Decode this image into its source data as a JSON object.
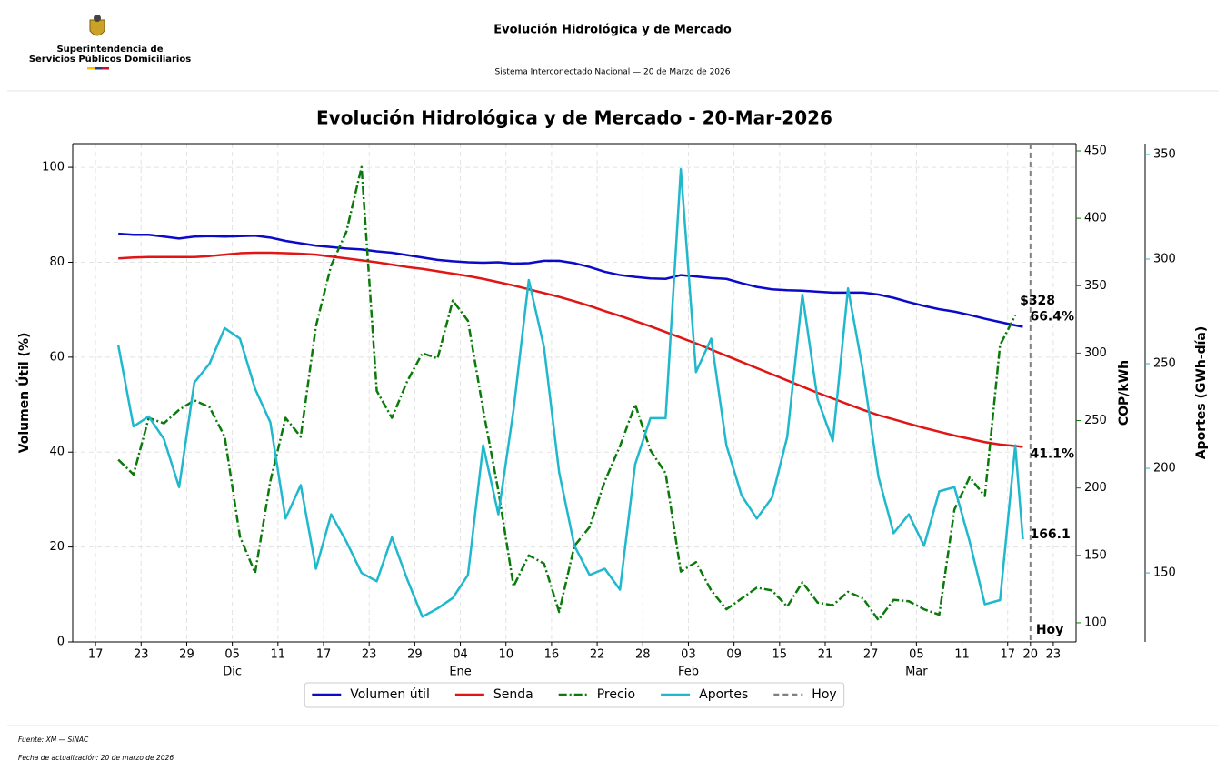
{
  "header": {
    "org_line1": "Superintendencia de",
    "org_line2": "Servicios Públicos Domiciliarios",
    "title": "Evolución Hidrológica y de Mercado",
    "subtitle": "Sistema Interconectado Nacional  —  20 de Marzo de 2026"
  },
  "footer": {
    "source": "Fuente: XM — SiNAC",
    "updated": "Fecha de actualización: 20 de marzo de 2026"
  },
  "chart_data": {
    "type": "line",
    "title": "Evolución Hidrológica y de Mercado - 20-Mar-2026",
    "ylabel": "Volumen Útil (%)",
    "y2label": "COP/kWh",
    "y3label": "Aportes (GWh-día)",
    "grid": true,
    "legend": "bottom",
    "x": [
      "2025-11-20",
      "2025-11-22",
      "2025-11-24",
      "2025-11-26",
      "2025-11-28",
      "2025-11-30",
      "2025-12-02",
      "2025-12-04",
      "2025-12-06",
      "2025-12-08",
      "2025-12-10",
      "2025-12-12",
      "2025-12-14",
      "2025-12-16",
      "2025-12-18",
      "2025-12-20",
      "2025-12-22",
      "2025-12-24",
      "2025-12-26",
      "2025-12-28",
      "2025-12-30",
      "2026-01-01",
      "2026-01-03",
      "2026-01-05",
      "2026-01-07",
      "2026-01-09",
      "2026-01-11",
      "2026-01-13",
      "2026-01-15",
      "2026-01-17",
      "2026-01-19",
      "2026-01-21",
      "2026-01-23",
      "2026-01-25",
      "2026-01-27",
      "2026-01-29",
      "2026-01-31",
      "2026-02-02",
      "2026-02-04",
      "2026-02-06",
      "2026-02-08",
      "2026-02-10",
      "2026-02-12",
      "2026-02-14",
      "2026-02-16",
      "2026-02-18",
      "2026-02-20",
      "2026-02-22",
      "2026-02-24",
      "2026-02-26",
      "2026-02-28",
      "2026-03-02",
      "2026-03-04",
      "2026-03-06",
      "2026-03-08",
      "2026-03-10",
      "2026-03-12",
      "2026-03-14",
      "2026-03-16",
      "2026-03-18",
      "2026-03-19"
    ],
    "xlim": [
      "2025-11-14",
      "2026-03-26"
    ],
    "xticks": [
      {
        "value": "2025-11-17",
        "label": "17"
      },
      {
        "value": "2025-11-23",
        "label": "23"
      },
      {
        "value": "2025-11-29",
        "label": "29"
      },
      {
        "value": "2025-12-05",
        "label": "05"
      },
      {
        "value": "2025-12-11",
        "label": "11"
      },
      {
        "value": "2025-12-17",
        "label": "17"
      },
      {
        "value": "2025-12-23",
        "label": "23"
      },
      {
        "value": "2025-12-29",
        "label": "29"
      },
      {
        "value": "2026-01-04",
        "label": "04"
      },
      {
        "value": "2026-01-10",
        "label": "10"
      },
      {
        "value": "2026-01-16",
        "label": "16"
      },
      {
        "value": "2026-01-22",
        "label": "22"
      },
      {
        "value": "2026-01-28",
        "label": "28"
      },
      {
        "value": "2026-02-03",
        "label": "03"
      },
      {
        "value": "2026-02-09",
        "label": "09"
      },
      {
        "value": "2026-02-15",
        "label": "15"
      },
      {
        "value": "2026-02-21",
        "label": "21"
      },
      {
        "value": "2026-02-27",
        "label": "27"
      },
      {
        "value": "2026-03-05",
        "label": "05"
      },
      {
        "value": "2026-03-11",
        "label": "11"
      },
      {
        "value": "2026-03-17",
        "label": "17"
      },
      {
        "value": "2026-03-20",
        "label": "20"
      },
      {
        "value": "2026-03-23",
        "label": "23"
      }
    ],
    "x_month_labels": [
      {
        "value": "2025-12-05",
        "label": "Dic"
      },
      {
        "value": "2026-01-04",
        "label": "Ene"
      },
      {
        "value": "2026-02-03",
        "label": "Feb"
      },
      {
        "value": "2026-03-05",
        "label": "Mar"
      }
    ],
    "ylim": [
      0,
      105
    ],
    "yticks": [
      0,
      20,
      40,
      60,
      80,
      100
    ],
    "y2lim": [
      85.8,
      455.4
    ],
    "y2ticks": [
      100,
      150,
      200,
      250,
      300,
      350,
      400,
      450
    ],
    "y3lim": [
      117,
      355.2
    ],
    "y3ticks": [
      150,
      200,
      250,
      300,
      350
    ],
    "series": [
      {
        "name": "Volumen útil",
        "color": "#0a0ac8",
        "axis": "y",
        "dash": "solid",
        "values": [
          86,
          85.8,
          85.8,
          85.4,
          85,
          85.4,
          85.5,
          85.4,
          85.5,
          85.6,
          85.2,
          84.5,
          84,
          83.5,
          83.2,
          82.9,
          82.7,
          82.3,
          82,
          81.5,
          81,
          80.5,
          80.2,
          80,
          79.9,
          80,
          79.7,
          79.8,
          80.3,
          80.3,
          79.8,
          79,
          78,
          77.3,
          76.9,
          76.6,
          76.5,
          77.3,
          77,
          76.7,
          76.5,
          75.6,
          74.8,
          74.3,
          74.1,
          74,
          73.8,
          73.6,
          73.6,
          73.6,
          73.2,
          72.5,
          71.6,
          70.8,
          70.1,
          69.6,
          68.9,
          68.1,
          67.4,
          66.7,
          66.4
        ],
        "value_labels": [
          null,
          null,
          null,
          null,
          null,
          null,
          null,
          null,
          null,
          null,
          null,
          null,
          null,
          null,
          null,
          null,
          null,
          null,
          null,
          null,
          null,
          null,
          null,
          null,
          null,
          null,
          null,
          null,
          null,
          null,
          null,
          null,
          null,
          null,
          null,
          null,
          null,
          null,
          null,
          null,
          null,
          null,
          null,
          null,
          null,
          null,
          null,
          null,
          null,
          null,
          null,
          null,
          null,
          null,
          null,
          null,
          null,
          null,
          null,
          null,
          "66.4%"
        ]
      },
      {
        "name": "Senda",
        "color": "#e01515",
        "axis": "y",
        "dash": "solid",
        "values": [
          80.8,
          81,
          81.1,
          81.1,
          81.1,
          81.1,
          81.3,
          81.6,
          81.9,
          82,
          82,
          81.9,
          81.8,
          81.6,
          81.2,
          80.8,
          80.4,
          80,
          79.5,
          79,
          78.6,
          78.1,
          77.6,
          77.1,
          76.5,
          75.8,
          75.1,
          74.3,
          73.5,
          72.7,
          71.8,
          70.8,
          69.7,
          68.7,
          67.6,
          66.5,
          65.3,
          64.1,
          62.9,
          61.6,
          60.3,
          59,
          57.7,
          56.4,
          55.1,
          53.8,
          52.5,
          51.3,
          50.1,
          48.9,
          47.8,
          46.9,
          46,
          45.1,
          44.3,
          43.5,
          42.8,
          42.1,
          41.6,
          41.3,
          41.1
        ],
        "value_labels": [
          null,
          null,
          null,
          null,
          null,
          null,
          null,
          null,
          null,
          null,
          null,
          null,
          null,
          null,
          null,
          null,
          null,
          null,
          null,
          null,
          null,
          null,
          null,
          null,
          null,
          null,
          null,
          null,
          null,
          null,
          null,
          null,
          null,
          null,
          null,
          null,
          null,
          null,
          null,
          null,
          null,
          null,
          null,
          null,
          null,
          null,
          null,
          null,
          null,
          null,
          null,
          null,
          null,
          null,
          null,
          null,
          null,
          null,
          null,
          null,
          "41.1%"
        ]
      },
      {
        "name": "Precio",
        "color": "#0a7a0a",
        "axis": "y2",
        "dash": "dashdot",
        "values": [
          221,
          210,
          252,
          248,
          258,
          265,
          260,
          238,
          164,
          137,
          205,
          252,
          238,
          320,
          365,
          390,
          438,
          272,
          252,
          279,
          300,
          296,
          339,
          324,
          258,
          198,
          127,
          150,
          144,
          108,
          157,
          171,
          205,
          231,
          262,
          228,
          211,
          138,
          145,
          124,
          110,
          118,
          126,
          124,
          112,
          130,
          115,
          113,
          123,
          118,
          102,
          117,
          116,
          110,
          106,
          184,
          208,
          194,
          306,
          328,
          null
        ],
        "value_labels": [
          null,
          null,
          null,
          null,
          null,
          null,
          null,
          null,
          null,
          null,
          null,
          null,
          null,
          null,
          null,
          null,
          null,
          null,
          null,
          null,
          null,
          null,
          null,
          null,
          null,
          null,
          null,
          null,
          null,
          null,
          null,
          null,
          null,
          null,
          null,
          null,
          null,
          null,
          null,
          null,
          null,
          null,
          null,
          null,
          null,
          null,
          null,
          null,
          null,
          null,
          null,
          null,
          null,
          null,
          null,
          null,
          null,
          null,
          null,
          "$328",
          null
        ]
      },
      {
        "name": "Aportes",
        "color": "#1fb8cc",
        "axis": "y3",
        "dash": "solid",
        "values": [
          258.7,
          220,
          224.8,
          214,
          191,
          241,
          250,
          267,
          262,
          238,
          222,
          176,
          192,
          152,
          178,
          165,
          150,
          146,
          167,
          147,
          129,
          133,
          138,
          149,
          211,
          178,
          228,
          290,
          258,
          198,
          163,
          149,
          152,
          142,
          202,
          224,
          224,
          343,
          246,
          262,
          211,
          187,
          176,
          186,
          215,
          283,
          233,
          213,
          286,
          246,
          196,
          169,
          178,
          163,
          189,
          191,
          165,
          135,
          137,
          211,
          166.1
        ],
        "value_labels": [
          null,
          null,
          null,
          null,
          null,
          null,
          null,
          null,
          null,
          null,
          null,
          null,
          null,
          null,
          null,
          null,
          null,
          null,
          null,
          null,
          null,
          null,
          null,
          null,
          null,
          null,
          null,
          null,
          null,
          null,
          null,
          null,
          null,
          null,
          null,
          null,
          null,
          null,
          null,
          null,
          null,
          null,
          null,
          null,
          null,
          null,
          null,
          null,
          null,
          null,
          null,
          null,
          null,
          null,
          null,
          null,
          null,
          null,
          null,
          null,
          "166.1"
        ]
      }
    ],
    "reference_line": {
      "name": "Hoy",
      "x": "2026-03-20",
      "color": "#808080",
      "dash": "dashed"
    }
  }
}
